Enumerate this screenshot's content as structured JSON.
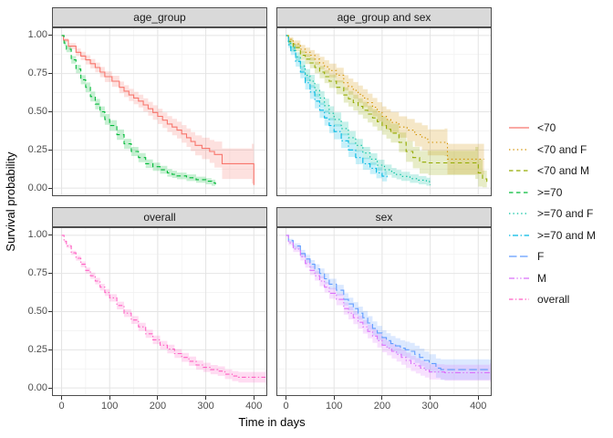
{
  "chart_data": {
    "type": "line",
    "variant": "kaplan-meier-step-faceted",
    "xlabel": "Time in days",
    "ylabel": "Survival probability",
    "x_ticks": [
      0,
      100,
      200,
      300,
      400
    ],
    "x_minor_ticks": [
      50,
      150,
      250,
      350
    ],
    "y_ticks": [
      1.0,
      0.75,
      0.5,
      0.25,
      0.0
    ],
    "y_minor_ticks": [
      0.875,
      0.625,
      0.375,
      0.125
    ],
    "xlim": [
      -20,
      428
    ],
    "ylim": [
      -0.053,
      1.053
    ],
    "grid": "major and minor, light grey",
    "legend_position": "right",
    "points_format": "[time_days, survival_probability, ci_halfwidth]",
    "theme": {
      "strip_fill": "#d9d9d9",
      "panel_border": "#4d4d4d",
      "grid_major": "#e4e4e4",
      "grid_minor": "#f1f1f1",
      "tick_text": "#4d4d4d",
      "band_opacity": 0.22
    },
    "panels": [
      {
        "title": "age_group",
        "series": [
          "<70",
          ">=70"
        ]
      },
      {
        "title": "age_group and sex",
        "series": [
          "<70 and F",
          "<70 and M",
          ">=70 and F",
          ">=70 and M"
        ]
      },
      {
        "title": "overall",
        "series": [
          "overall"
        ]
      },
      {
        "title": "sex",
        "series": [
          "F",
          "M"
        ]
      }
    ],
    "series": [
      {
        "name": "<70",
        "panel": "age_group",
        "color": "#F8766D",
        "linetype": "solid",
        "points": [
          [
            0,
            1.0,
            0.005
          ],
          [
            4,
            0.97,
            0.012
          ],
          [
            14,
            0.93,
            0.02
          ],
          [
            30,
            0.89,
            0.025
          ],
          [
            50,
            0.84,
            0.03
          ],
          [
            70,
            0.79,
            0.032
          ],
          [
            90,
            0.73,
            0.035
          ],
          [
            105,
            0.7,
            0.036
          ],
          [
            120,
            0.66,
            0.038
          ],
          [
            140,
            0.61,
            0.04
          ],
          [
            160,
            0.57,
            0.042
          ],
          [
            180,
            0.52,
            0.045
          ],
          [
            200,
            0.47,
            0.05
          ],
          [
            220,
            0.42,
            0.052
          ],
          [
            240,
            0.38,
            0.055
          ],
          [
            260,
            0.33,
            0.06
          ],
          [
            278,
            0.28,
            0.065
          ],
          [
            292,
            0.26,
            0.07
          ],
          [
            308,
            0.24,
            0.075
          ],
          [
            318,
            0.22,
            0.085
          ],
          [
            334,
            0.16,
            0.1
          ],
          [
            396,
            0.16,
            0.13
          ],
          [
            400,
            0.02,
            0.02
          ]
        ]
      },
      {
        "name": ">=70",
        "panel": "age_group",
        "color": "#00BA38",
        "linetype": "dashed",
        "points": [
          [
            0,
            1.0,
            0.005
          ],
          [
            5,
            0.95,
            0.015
          ],
          [
            10,
            0.91,
            0.02
          ],
          [
            20,
            0.84,
            0.025
          ],
          [
            30,
            0.78,
            0.028
          ],
          [
            40,
            0.71,
            0.03
          ],
          [
            50,
            0.66,
            0.032
          ],
          [
            60,
            0.6,
            0.033
          ],
          [
            70,
            0.55,
            0.034
          ],
          [
            80,
            0.5,
            0.035
          ],
          [
            90,
            0.45,
            0.035
          ],
          [
            100,
            0.41,
            0.035
          ],
          [
            115,
            0.35,
            0.034
          ],
          [
            130,
            0.29,
            0.033
          ],
          [
            145,
            0.24,
            0.03
          ],
          [
            160,
            0.2,
            0.03
          ],
          [
            175,
            0.16,
            0.028
          ],
          [
            190,
            0.14,
            0.027
          ],
          [
            205,
            0.12,
            0.026
          ],
          [
            220,
            0.1,
            0.025
          ],
          [
            240,
            0.08,
            0.022
          ],
          [
            260,
            0.068,
            0.022
          ],
          [
            280,
            0.055,
            0.02
          ],
          [
            300,
            0.045,
            0.02
          ],
          [
            312,
            0.035,
            0.02
          ],
          [
            320,
            0.025,
            0.015
          ]
        ]
      },
      {
        "name": "<70 and F",
        "panel": "age_group and sex",
        "color": "#D39200",
        "linetype": "dotted",
        "points": [
          [
            0,
            1.0,
            0.006
          ],
          [
            5,
            0.975,
            0.014
          ],
          [
            15,
            0.945,
            0.022
          ],
          [
            30,
            0.91,
            0.028
          ],
          [
            50,
            0.87,
            0.034
          ],
          [
            70,
            0.82,
            0.04
          ],
          [
            90,
            0.77,
            0.045
          ],
          [
            105,
            0.74,
            0.048
          ],
          [
            120,
            0.69,
            0.05
          ],
          [
            140,
            0.64,
            0.055
          ],
          [
            160,
            0.59,
            0.058
          ],
          [
            180,
            0.53,
            0.06
          ],
          [
            200,
            0.47,
            0.065
          ],
          [
            218,
            0.43,
            0.068
          ],
          [
            235,
            0.4,
            0.07
          ],
          [
            252,
            0.38,
            0.073
          ],
          [
            268,
            0.35,
            0.078
          ],
          [
            283,
            0.33,
            0.082
          ],
          [
            295,
            0.3,
            0.085
          ],
          [
            330,
            0.3,
            0.09
          ],
          [
            336,
            0.19,
            0.1
          ],
          [
            412,
            0.19,
            0.12
          ]
        ]
      },
      {
        "name": "<70 and M",
        "panel": "age_group and sex",
        "color": "#93AA00",
        "linetype": "dashed",
        "points": [
          [
            0,
            1.0,
            0.006
          ],
          [
            5,
            0.96,
            0.018
          ],
          [
            15,
            0.92,
            0.024
          ],
          [
            30,
            0.87,
            0.03
          ],
          [
            50,
            0.82,
            0.035
          ],
          [
            70,
            0.76,
            0.04
          ],
          [
            90,
            0.7,
            0.044
          ],
          [
            105,
            0.66,
            0.046
          ],
          [
            120,
            0.61,
            0.05
          ],
          [
            140,
            0.56,
            0.052
          ],
          [
            160,
            0.51,
            0.055
          ],
          [
            180,
            0.46,
            0.056
          ],
          [
            200,
            0.41,
            0.06
          ],
          [
            218,
            0.36,
            0.062
          ],
          [
            235,
            0.3,
            0.065
          ],
          [
            250,
            0.24,
            0.068
          ],
          [
            264,
            0.2,
            0.07
          ],
          [
            278,
            0.17,
            0.075
          ],
          [
            296,
            0.165,
            0.08
          ],
          [
            394,
            0.165,
            0.105
          ],
          [
            400,
            0.1,
            0.09
          ],
          [
            418,
            0.02,
            0.02
          ]
        ]
      },
      {
        "name": ">=70 and F",
        "panel": "age_group and sex",
        "color": "#00C19F",
        "linetype": "dotted",
        "points": [
          [
            0,
            1.0,
            0.006
          ],
          [
            5,
            0.95,
            0.02
          ],
          [
            10,
            0.92,
            0.025
          ],
          [
            20,
            0.86,
            0.03
          ],
          [
            30,
            0.8,
            0.035
          ],
          [
            40,
            0.74,
            0.04
          ],
          [
            50,
            0.7,
            0.042
          ],
          [
            60,
            0.64,
            0.044
          ],
          [
            70,
            0.59,
            0.045
          ],
          [
            80,
            0.54,
            0.046
          ],
          [
            90,
            0.49,
            0.046
          ],
          [
            100,
            0.45,
            0.046
          ],
          [
            115,
            0.39,
            0.045
          ],
          [
            130,
            0.33,
            0.044
          ],
          [
            145,
            0.28,
            0.042
          ],
          [
            160,
            0.23,
            0.04
          ],
          [
            175,
            0.19,
            0.038
          ],
          [
            190,
            0.15,
            0.036
          ],
          [
            205,
            0.12,
            0.034
          ],
          [
            220,
            0.1,
            0.032
          ],
          [
            240,
            0.077,
            0.03
          ],
          [
            258,
            0.062,
            0.028
          ],
          [
            276,
            0.052,
            0.027
          ],
          [
            292,
            0.042,
            0.026
          ],
          [
            300,
            0.022,
            0.02
          ]
        ]
      },
      {
        "name": ">=70 and M",
        "panel": "age_group and sex",
        "color": "#00B9E3",
        "linetype": "dotdash",
        "points": [
          [
            0,
            1.0,
            0.006
          ],
          [
            5,
            0.94,
            0.022
          ],
          [
            10,
            0.9,
            0.028
          ],
          [
            20,
            0.83,
            0.034
          ],
          [
            30,
            0.76,
            0.04
          ],
          [
            40,
            0.69,
            0.044
          ],
          [
            50,
            0.63,
            0.046
          ],
          [
            60,
            0.57,
            0.048
          ],
          [
            70,
            0.51,
            0.05
          ],
          [
            80,
            0.46,
            0.05
          ],
          [
            90,
            0.41,
            0.05
          ],
          [
            100,
            0.37,
            0.05
          ],
          [
            115,
            0.31,
            0.048
          ],
          [
            130,
            0.25,
            0.046
          ],
          [
            145,
            0.2,
            0.044
          ],
          [
            160,
            0.16,
            0.04
          ],
          [
            175,
            0.13,
            0.038
          ],
          [
            188,
            0.1,
            0.036
          ],
          [
            200,
            0.078,
            0.034
          ],
          [
            210,
            0.06,
            0.03
          ]
        ]
      },
      {
        "name": "F",
        "panel": "sex",
        "color": "#619CFF",
        "linetype": "longdash",
        "points": [
          [
            0,
            1.0,
            0.005
          ],
          [
            5,
            0.965,
            0.012
          ],
          [
            15,
            0.93,
            0.018
          ],
          [
            30,
            0.88,
            0.024
          ],
          [
            50,
            0.81,
            0.028
          ],
          [
            70,
            0.75,
            0.032
          ],
          [
            90,
            0.68,
            0.035
          ],
          [
            105,
            0.64,
            0.036
          ],
          [
            120,
            0.58,
            0.04
          ],
          [
            140,
            0.52,
            0.042
          ],
          [
            160,
            0.46,
            0.044
          ],
          [
            180,
            0.39,
            0.046
          ],
          [
            200,
            0.33,
            0.048
          ],
          [
            218,
            0.29,
            0.05
          ],
          [
            238,
            0.26,
            0.052
          ],
          [
            258,
            0.24,
            0.055
          ],
          [
            278,
            0.2,
            0.058
          ],
          [
            298,
            0.16,
            0.06
          ],
          [
            312,
            0.13,
            0.063
          ],
          [
            322,
            0.12,
            0.068
          ],
          [
            428,
            0.12,
            0.085
          ]
        ]
      },
      {
        "name": "M",
        "panel": "sex",
        "color": "#DB72FB",
        "linetype": "twodash",
        "points": [
          [
            0,
            1.0,
            0.005
          ],
          [
            5,
            0.95,
            0.014
          ],
          [
            15,
            0.91,
            0.02
          ],
          [
            30,
            0.86,
            0.025
          ],
          [
            50,
            0.77,
            0.03
          ],
          [
            70,
            0.7,
            0.033
          ],
          [
            90,
            0.62,
            0.036
          ],
          [
            105,
            0.58,
            0.038
          ],
          [
            120,
            0.52,
            0.04
          ],
          [
            140,
            0.46,
            0.042
          ],
          [
            160,
            0.4,
            0.044
          ],
          [
            180,
            0.34,
            0.045
          ],
          [
            200,
            0.28,
            0.046
          ],
          [
            220,
            0.24,
            0.047
          ],
          [
            240,
            0.2,
            0.048
          ],
          [
            260,
            0.16,
            0.05
          ],
          [
            280,
            0.13,
            0.05
          ],
          [
            298,
            0.105,
            0.05
          ],
          [
            330,
            0.1,
            0.052
          ],
          [
            424,
            0.1,
            0.06
          ],
          [
            430,
            0.02,
            0.02
          ]
        ]
      },
      {
        "name": "overall",
        "panel": "overall",
        "color": "#FF61C3",
        "linetype": "dashdot",
        "points": [
          [
            0,
            1.0,
            0.004
          ],
          [
            5,
            0.96,
            0.01
          ],
          [
            10,
            0.93,
            0.012
          ],
          [
            20,
            0.885,
            0.014
          ],
          [
            30,
            0.85,
            0.016
          ],
          [
            40,
            0.81,
            0.018
          ],
          [
            50,
            0.77,
            0.019
          ],
          [
            60,
            0.735,
            0.02
          ],
          [
            70,
            0.7,
            0.021
          ],
          [
            80,
            0.66,
            0.022
          ],
          [
            90,
            0.625,
            0.023
          ],
          [
            100,
            0.59,
            0.024
          ],
          [
            115,
            0.54,
            0.025
          ],
          [
            130,
            0.49,
            0.025
          ],
          [
            145,
            0.445,
            0.026
          ],
          [
            160,
            0.4,
            0.027
          ],
          [
            175,
            0.355,
            0.027
          ],
          [
            190,
            0.315,
            0.028
          ],
          [
            205,
            0.28,
            0.028
          ],
          [
            220,
            0.255,
            0.028
          ],
          [
            235,
            0.225,
            0.029
          ],
          [
            250,
            0.2,
            0.029
          ],
          [
            265,
            0.175,
            0.03
          ],
          [
            280,
            0.15,
            0.03
          ],
          [
            295,
            0.135,
            0.03
          ],
          [
            310,
            0.12,
            0.03
          ],
          [
            325,
            0.11,
            0.031
          ],
          [
            340,
            0.09,
            0.032
          ],
          [
            355,
            0.078,
            0.033
          ],
          [
            368,
            0.07,
            0.035
          ],
          [
            424,
            0.07,
            0.05
          ],
          [
            430,
            0.02,
            0.02
          ]
        ]
      }
    ],
    "legend": [
      "<70",
      "<70 and F",
      "<70 and M",
      ">=70",
      ">=70 and F",
      ">=70 and M",
      "F",
      "M",
      "overall"
    ]
  }
}
